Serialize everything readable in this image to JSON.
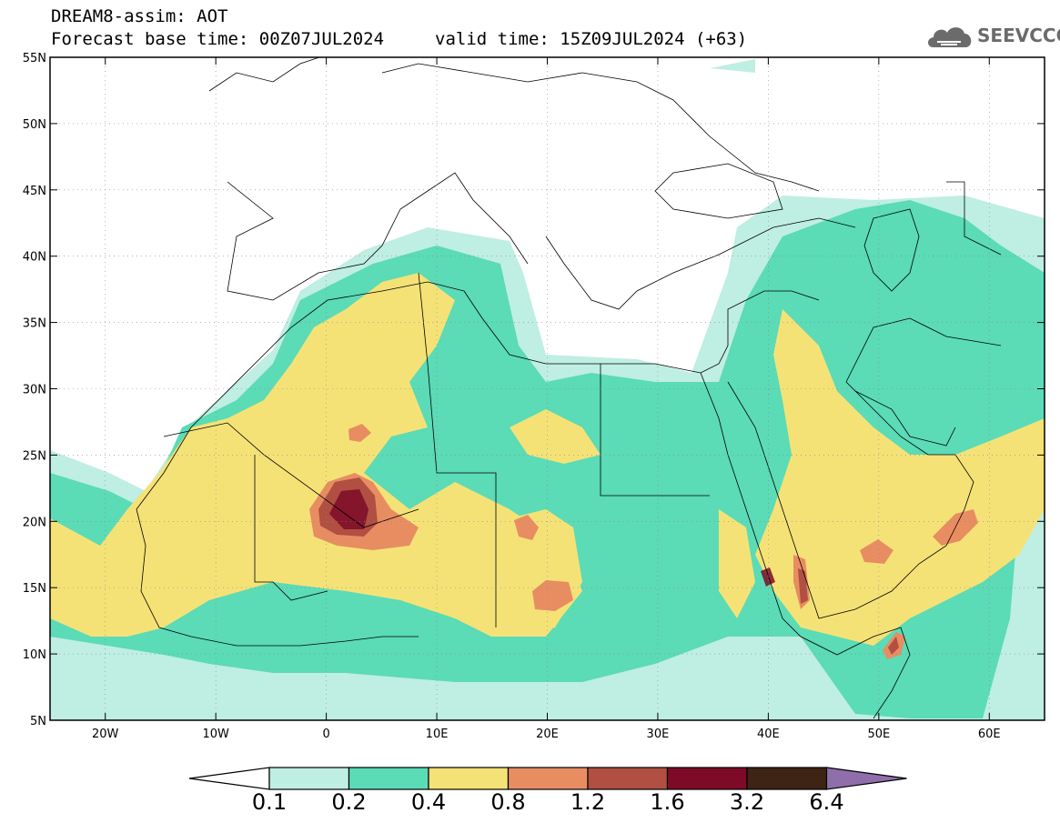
{
  "header": {
    "line1": "DREAM8-assim: AOT",
    "line2": "Forecast base time: 00Z07JUL2024",
    "valid": "valid time: 15Z09JUL2024 (+63)",
    "logo_text": "SEEVCCC"
  },
  "map": {
    "lon_range": [
      -25,
      65
    ],
    "lat_range": [
      5,
      55
    ],
    "lat_ticks": [
      "55N",
      "50N",
      "45N",
      "40N",
      "35N",
      "30N",
      "25N",
      "20N",
      "15N",
      "10N",
      "5N"
    ],
    "lon_ticks": [
      "20W",
      "10W",
      "0",
      "10E",
      "20E",
      "30E",
      "40E",
      "50E",
      "60E"
    ],
    "lat_values": [
      55,
      50,
      45,
      40,
      35,
      30,
      25,
      20,
      15,
      10,
      5
    ],
    "lon_values": [
      -20,
      -10,
      0,
      10,
      20,
      30,
      40,
      50,
      60
    ]
  },
  "colorbar": {
    "colors": [
      "#ffffff",
      "#bfeee2",
      "#5bdbb6",
      "#f5e277",
      "#e88d62",
      "#b14f42",
      "#7d0b27",
      "#3d2414",
      "#8f6eab"
    ],
    "labels": [
      "0.1",
      "0.2",
      "0.4",
      "0.8",
      "1.2",
      "1.6",
      "3.2",
      "6.4"
    ]
  }
}
